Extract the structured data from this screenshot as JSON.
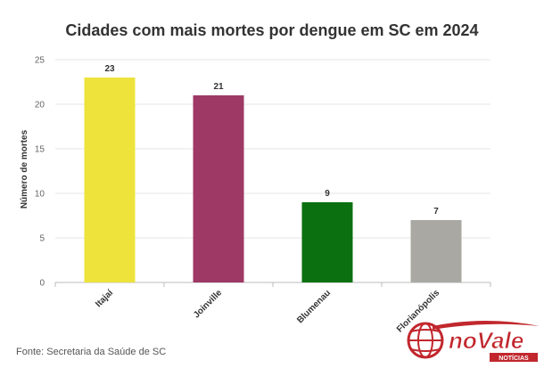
{
  "chart_data": {
    "type": "bar",
    "title": "Cidades com mais mortes por dengue em SC em 2024",
    "ylabel": "Número de mortes",
    "xlabel": "",
    "categories": [
      "Itajaí",
      "Joinville",
      "Blumenau",
      "Florianópolis"
    ],
    "values": [
      23,
      21,
      9,
      7
    ],
    "colors": [
      "#ede33b",
      "#9e3865",
      "#0b7010",
      "#a9a8a3"
    ],
    "ylim": [
      0,
      25
    ],
    "yticks": [
      0,
      5,
      10,
      15,
      20,
      25
    ],
    "grid": true,
    "legend": "none"
  },
  "source": "Fonte: Secretaria da Saúde de SC",
  "logo": {
    "name": "noVale",
    "subtitle": "NOTÍCIAS"
  }
}
